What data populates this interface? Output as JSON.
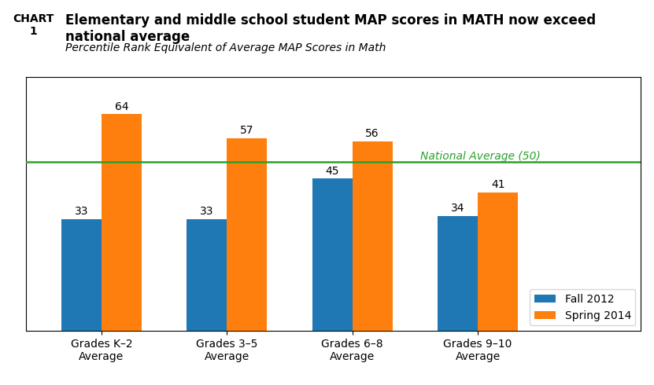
{
  "chart_data": {
    "type": "bar",
    "title": "Elementary and middle school student MAP scores in MATH now exceed national average",
    "subtitle": "Percentile Rank Equivalent of Average MAP Scores in Math",
    "annotations": [
      "CHART\n1"
    ],
    "categories": [
      "Grades K–2\nAverage",
      "Grades 3–5\nAverage",
      "Grades 6–8\nAverage",
      "Grades 9–10\nAverage"
    ],
    "series": [
      {
        "name": "Fall 2012",
        "values": [
          33,
          33,
          45,
          34
        ]
      },
      {
        "name": "Spring 2014",
        "values": [
          64,
          57,
          56,
          41
        ]
      }
    ],
    "reference_lines": [
      {
        "value": 50,
        "label": "National Average (50)"
      }
    ],
    "ylim": [
      0,
      75
    ],
    "legend": "lower right",
    "data_labels": true,
    "tick_labels": "x"
  }
}
